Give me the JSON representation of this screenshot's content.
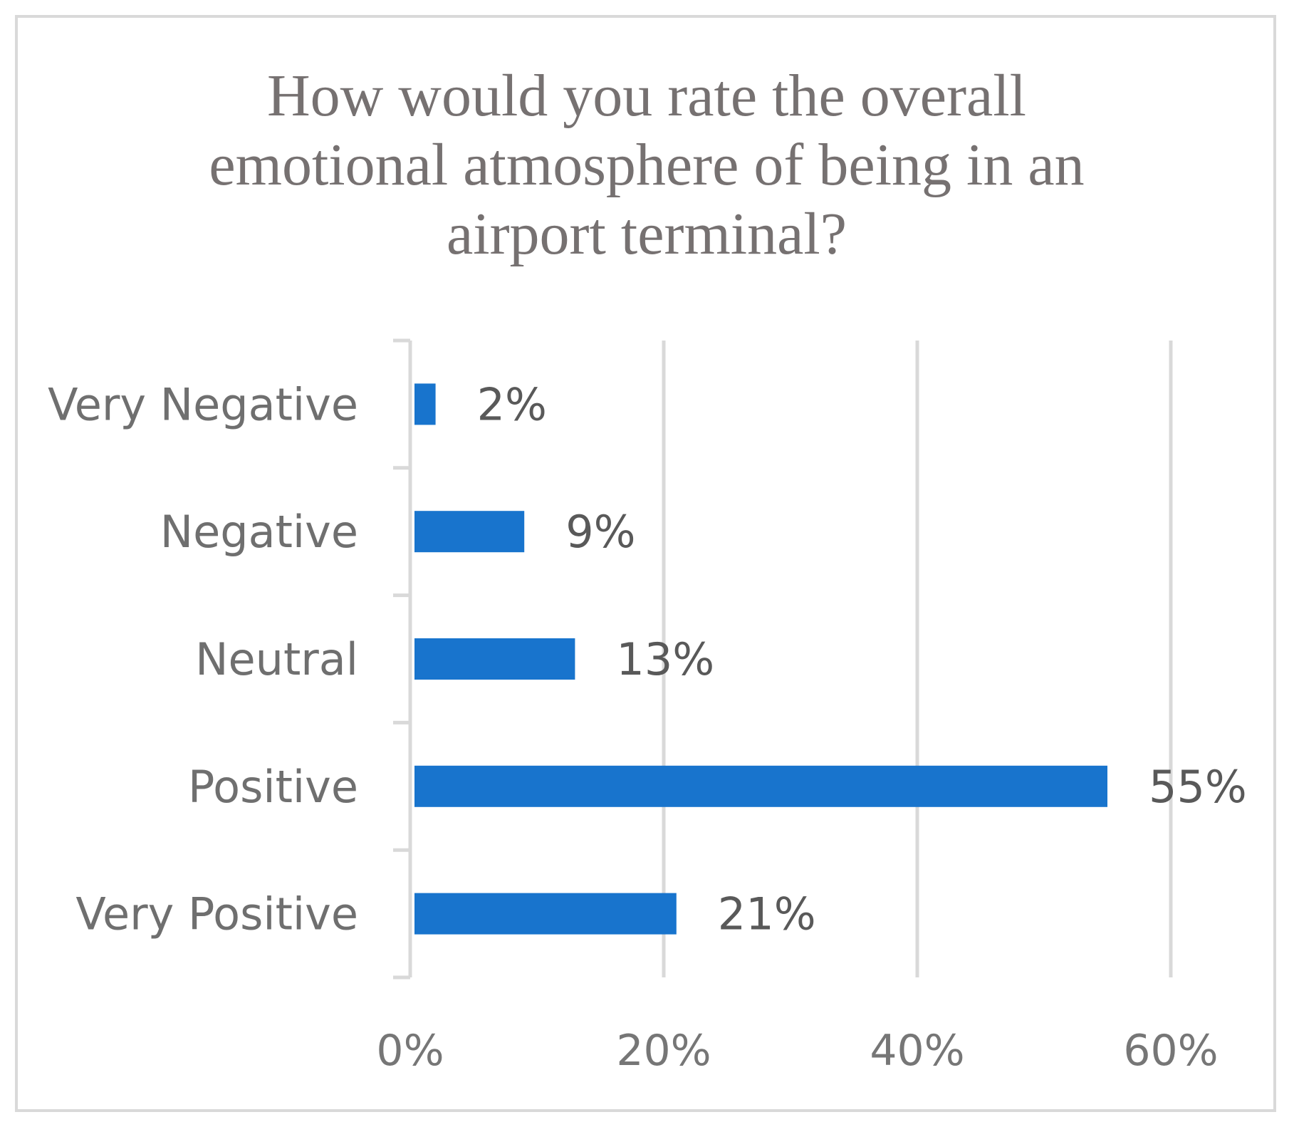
{
  "chart_data": {
    "type": "bar",
    "orientation": "horizontal",
    "title_lines": [
      "How would you rate the overall",
      "emotional atmosphere of being in an",
      "airport terminal?"
    ],
    "categories": [
      "Very Negative",
      "Negative",
      "Neutral",
      "Positive",
      "Very Positive"
    ],
    "values": [
      2,
      9,
      13,
      55,
      21
    ],
    "data_labels": [
      "2%",
      "9%",
      "13%",
      "55%",
      "21%"
    ],
    "xlim": [
      0,
      60
    ],
    "xticks": [
      0,
      20,
      40,
      60
    ],
    "xtick_labels": [
      "0%",
      "20%",
      "40%",
      "60%"
    ],
    "xlabel": "",
    "ylabel": "",
    "grid": "vertical",
    "legend": "none",
    "bar_color": "#1874cd",
    "grid_color": "#d9d9d9"
  }
}
